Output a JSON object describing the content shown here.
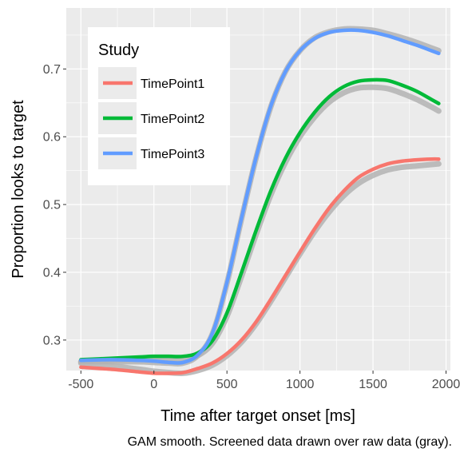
{
  "chart_data": {
    "type": "line",
    "xlabel": "Time after target onset [ms]",
    "ylabel": "Proportion looks to target",
    "caption": "GAM smooth. Screened data drawn over raw data (gray).",
    "xlim": [
      -600,
      2030
    ],
    "ylim": [
      0.255,
      0.79
    ],
    "x_ticks": [
      -500,
      0,
      500,
      1000,
      1500,
      2000
    ],
    "x_tick_labels": [
      "-500",
      "0",
      "500",
      "1000",
      "1500",
      "2000"
    ],
    "y_ticks": [
      0.3,
      0.4,
      0.5,
      0.6,
      0.7
    ],
    "y_tick_labels": [
      "0.3",
      "0.4",
      "0.5",
      "0.6",
      "0.7"
    ],
    "grid": true,
    "legend": {
      "title": "Study",
      "position": "top-left inside"
    },
    "colors": {
      "panel_bg": "#ebebeb",
      "grid": "#ffffff",
      "raw_data": "#b3b3b3"
    },
    "x": [
      -500,
      -300,
      -100,
      0,
      100,
      200,
      300,
      400,
      500,
      600,
      700,
      800,
      900,
      1000,
      1100,
      1200,
      1300,
      1400,
      1500,
      1600,
      1700,
      1800,
      1900,
      1950
    ],
    "series": [
      {
        "name": "TimePoint1",
        "color": "#F8766D",
        "values": [
          0.26,
          0.257,
          0.253,
          0.251,
          0.251,
          0.252,
          0.258,
          0.266,
          0.28,
          0.3,
          0.327,
          0.36,
          0.395,
          0.43,
          0.464,
          0.495,
          0.52,
          0.54,
          0.552,
          0.56,
          0.564,
          0.566,
          0.567,
          0.567
        ],
        "raw_values": [
          0.266,
          0.262,
          0.257,
          0.254,
          0.252,
          0.251,
          0.255,
          0.263,
          0.277,
          0.297,
          0.324,
          0.357,
          0.392,
          0.427,
          0.46,
          0.489,
          0.513,
          0.531,
          0.543,
          0.551,
          0.555,
          0.557,
          0.559,
          0.56
        ]
      },
      {
        "name": "TimePoint2",
        "color": "#00BA38",
        "values": [
          0.271,
          0.273,
          0.275,
          0.276,
          0.276,
          0.276,
          0.281,
          0.299,
          0.34,
          0.4,
          0.462,
          0.52,
          0.568,
          0.606,
          0.636,
          0.659,
          0.674,
          0.682,
          0.684,
          0.683,
          0.676,
          0.667,
          0.655,
          0.649
        ],
        "raw_values": [
          0.268,
          0.27,
          0.272,
          0.272,
          0.271,
          0.271,
          0.277,
          0.295,
          0.335,
          0.394,
          0.456,
          0.514,
          0.562,
          0.6,
          0.629,
          0.651,
          0.665,
          0.672,
          0.673,
          0.671,
          0.664,
          0.655,
          0.644,
          0.638
        ]
      },
      {
        "name": "TimePoint3",
        "color": "#619CFF",
        "values": [
          0.27,
          0.271,
          0.27,
          0.269,
          0.267,
          0.267,
          0.278,
          0.31,
          0.385,
          0.48,
          0.57,
          0.645,
          0.696,
          0.727,
          0.745,
          0.754,
          0.757,
          0.757,
          0.754,
          0.749,
          0.742,
          0.735,
          0.727,
          0.723
        ],
        "raw_values": [
          0.268,
          0.268,
          0.268,
          0.267,
          0.266,
          0.266,
          0.277,
          0.309,
          0.384,
          0.479,
          0.569,
          0.644,
          0.696,
          0.727,
          0.746,
          0.755,
          0.759,
          0.759,
          0.757,
          0.752,
          0.746,
          0.739,
          0.731,
          0.727
        ]
      }
    ]
  }
}
